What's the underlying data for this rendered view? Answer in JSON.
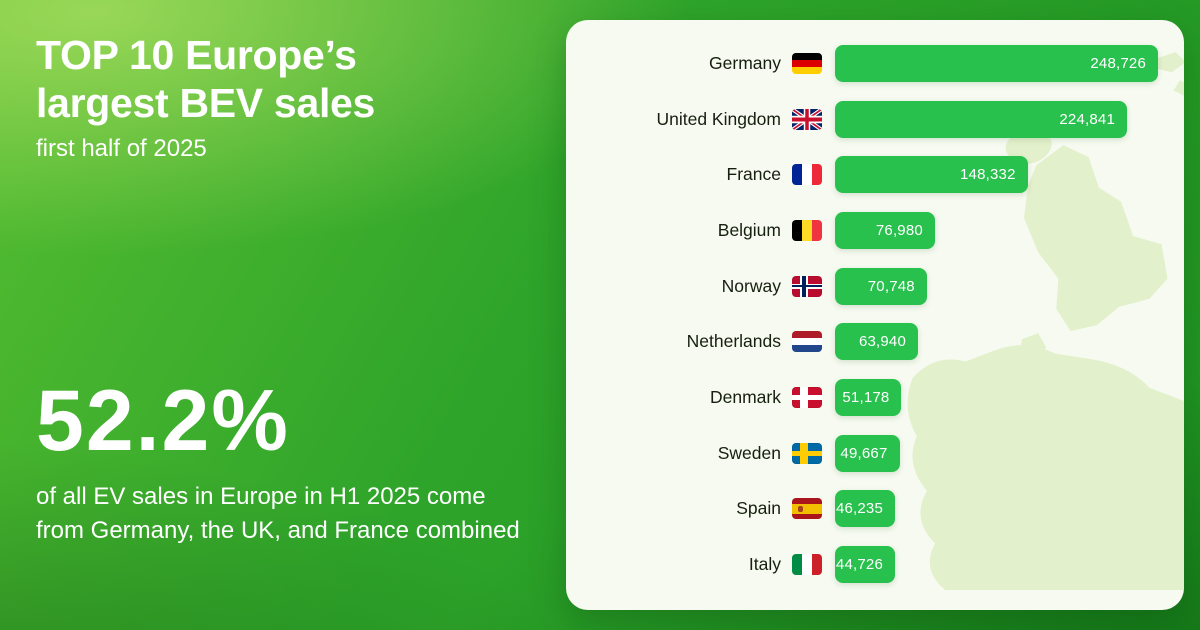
{
  "left_panel": {
    "title_line1": "TOP 10 Europe’s",
    "title_line2": "largest BEV sales",
    "subtitle": "first half of 2025",
    "stat_value": "52.2%",
    "stat_description": "of all EV sales in Europe in H1 2025 come from Germany, the UK, and France combined"
  },
  "colors": {
    "accent_bar": "#29C14E",
    "background_green": "#2EA42A",
    "card_background": "#F6FAF0",
    "map_silhouette": "#E3F0CC",
    "text_dark": "#16200F",
    "text_light": "#FFFFFF"
  },
  "chart_data": {
    "type": "bar",
    "orientation": "horizontal",
    "title": "TOP 10 Europe’s largest BEV sales",
    "subtitle": "first half of 2025",
    "xlabel": "",
    "ylabel": "",
    "xlim": [
      0,
      250000
    ],
    "grid": false,
    "legend": "none",
    "categories": [
      "Germany",
      "United Kingdom",
      "France",
      "Belgium",
      "Norway",
      "Netherlands",
      "Denmark",
      "Sweden",
      "Spain",
      "Italy"
    ],
    "values": [
      248726,
      224841,
      148332,
      76980,
      70748,
      63940,
      51178,
      49667,
      46235,
      44726
    ],
    "value_labels": [
      "248,726",
      "224,841",
      "148,332",
      "76,980",
      "70,748",
      "63,940",
      "51,178",
      "49,667",
      "46,235",
      "44,726"
    ],
    "max_value": 248726,
    "annotation": "52.2% of all EV sales in Europe in H1 2025 come from Germany, the UK, and France combined",
    "flags": [
      {
        "type": "h",
        "colors": [
          "#000000",
          "#DD0000",
          "#FFCE00"
        ]
      },
      {
        "type": "uk",
        "colors": [
          "#012169",
          "#C8102E",
          "#FFFFFF"
        ]
      },
      {
        "type": "v",
        "colors": [
          "#002395",
          "#FFFFFF",
          "#ED2939"
        ]
      },
      {
        "type": "v",
        "colors": [
          "#000000",
          "#FDDA24",
          "#EF3340"
        ]
      },
      {
        "type": "cross",
        "bg": "#BA0C2F",
        "outer": "#FFFFFF",
        "inner": "#00205B"
      },
      {
        "type": "h",
        "colors": [
          "#AE1C28",
          "#FFFFFF",
          "#21468B"
        ]
      },
      {
        "type": "cross",
        "bg": "#C8102E",
        "outer": "#FFFFFF"
      },
      {
        "type": "cross",
        "bg": "#006AA7",
        "outer": "#FECC02"
      },
      {
        "type": "spain",
        "colors": [
          "#AA151B",
          "#F1BF00",
          "#AA151B"
        ]
      },
      {
        "type": "v",
        "colors": [
          "#008C45",
          "#FFFFFF",
          "#CD212A"
        ]
      }
    ]
  }
}
